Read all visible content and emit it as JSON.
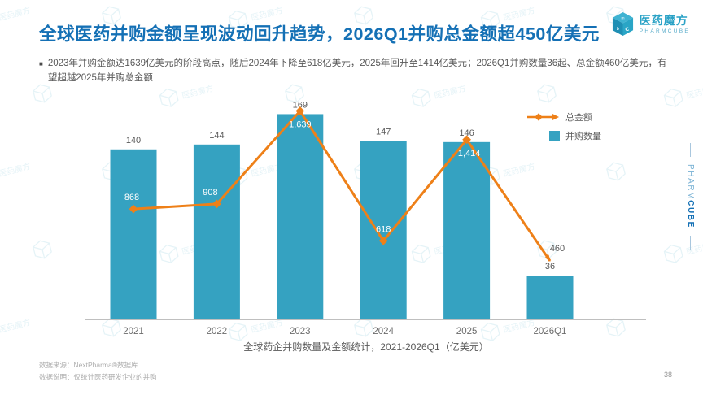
{
  "page": {
    "title": "全球医药并购金额呈现波动回升趋势，2026Q1并购总金额超450亿美元",
    "page_number": "38"
  },
  "logo": {
    "name": "医药魔方",
    "subtext": "PHARMCUBE"
  },
  "side_brand": {
    "pharm": "PHARM",
    "cube": "CUBE"
  },
  "watermark": {
    "text": "医药魔方",
    "color": "#2fa0c0"
  },
  "bullet": {
    "text": "2023年并购金额达1639亿美元的阶段高点，随后2024年下降至618亿美元，2025年回升至1414亿美元；2026Q1并购数量36起、总金额460亿美元，有望超越2025年并购总金额"
  },
  "chart_data": {
    "type": "bar",
    "subtype": "bar+line combo",
    "categories": [
      "2021",
      "2022",
      "2023",
      "2024",
      "2025",
      "2026Q1"
    ],
    "series": [
      {
        "name": "并购数量",
        "type": "bar",
        "values": [
          140,
          144,
          169,
          147,
          146,
          36
        ],
        "color": "#35a2c1"
      },
      {
        "name": "总金额",
        "type": "line",
        "values": [
          868,
          908,
          1639,
          618,
          1414,
          460
        ],
        "color": "#ee8018",
        "value_labels": [
          "868",
          "908",
          "1,639",
          "618",
          "1,414",
          "460"
        ]
      }
    ],
    "caption": "全球药企并购数量及金额统计，2021-2026Q1（亿美元）",
    "legend_position": "top-right",
    "grid": false,
    "bar_axis_max": 178,
    "line_axis_max": 1700,
    "axis_color": "#bfbfbf",
    "bar_label_color": "#595959",
    "line_label_color_on_bar": "#ffffff",
    "line_label_color_off_bar": "#595959"
  },
  "footer": {
    "source": "数据来源：NextPharma®数据库",
    "note": "数据说明：仅统计医药研发企业的并购"
  }
}
